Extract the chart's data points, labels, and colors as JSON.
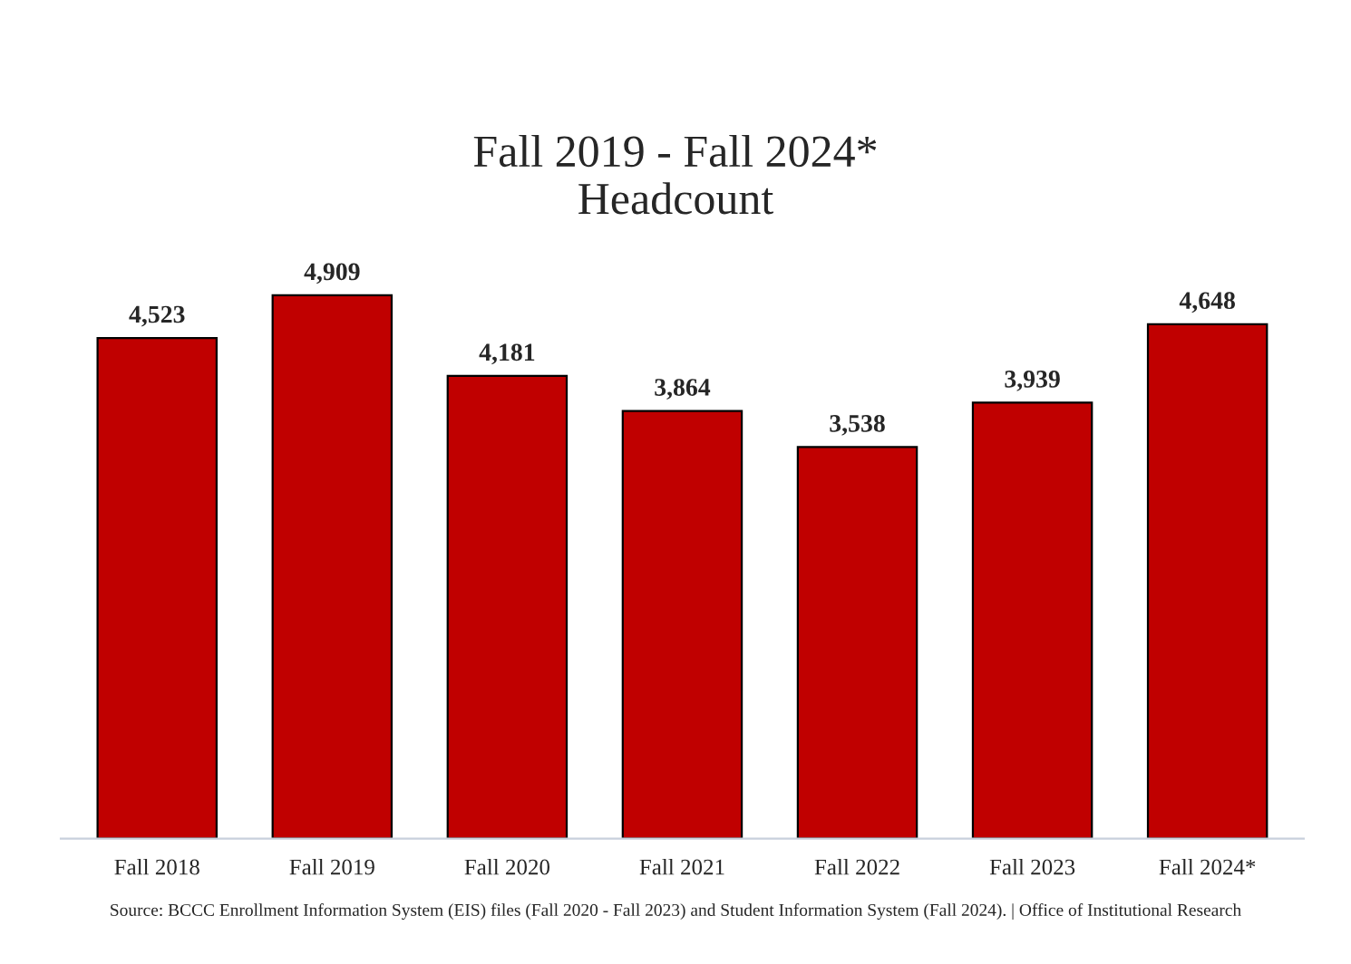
{
  "chart_data": {
    "type": "bar",
    "title": "Fall 2019 - Fall 2024*\nHeadcount",
    "categories": [
      "Fall 2018",
      "Fall 2019",
      "Fall 2020",
      "Fall 2021",
      "Fall 2022",
      "Fall 2023",
      "Fall 2024*"
    ],
    "values": [
      4523,
      4909,
      4181,
      3864,
      3538,
      3939,
      4648
    ],
    "value_labels": [
      "4,523",
      "4,909",
      "4,181",
      "3,864",
      "3,538",
      "3,939",
      "4,648"
    ],
    "color": "#c00000",
    "grid": false,
    "legend": false,
    "tick_labels": "x",
    "annotations": [
      "Source: BCCC Enrollment Information System (EIS) files (Fall 2020 - Fall 2023) and Student Information System (Fall 2024). | Office of Institutional Research"
    ]
  }
}
